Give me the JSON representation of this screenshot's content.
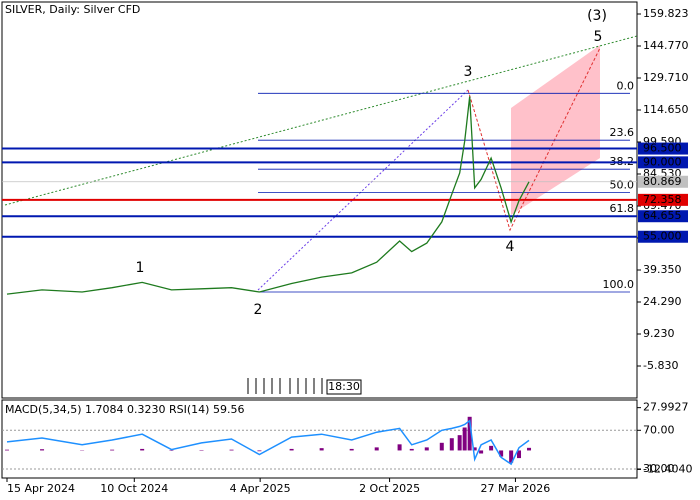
{
  "chart_data": {
    "type": "line",
    "title": "SILVER, Daily:  Silver CFD",
    "color": "#1e7a1e",
    "x": [
      "2024-04-15",
      "2024-06-03",
      "2024-07-29",
      "2024-09-09",
      "2024-10-21",
      "2024-12-01",
      "2025-01-12",
      "2025-02-23",
      "2025-04-03",
      "2025-05-18",
      "2025-06-29",
      "2025-08-10",
      "2025-09-14",
      "2025-10-16",
      "2025-11-02",
      "2025-11-23",
      "2025-12-14",
      "2025-12-28",
      "2026-01-08",
      "2026-01-15",
      "2026-01-22",
      "2026-01-29",
      "2026-02-07",
      "2026-02-21",
      "2026-03-07",
      "2026-03-21",
      "2026-04-01",
      "2026-04-15"
    ],
    "values": [
      28,
      30,
      29,
      31,
      33.5,
      30,
      30.5,
      31,
      29,
      33,
      36,
      38,
      43,
      53,
      48,
      52,
      62,
      75,
      85,
      100,
      121,
      78,
      82,
      92,
      78,
      62,
      72,
      80.869
    ],
    "xlim": [
      "2024-04-08",
      "2026-09-13"
    ],
    "xticks": [
      {
        "value": "2024-04-15",
        "label": "15 Apr 2024"
      },
      {
        "value": "2024-10-10",
        "label": "10 Oct 2024"
      },
      {
        "value": "2025-04-04",
        "label": "4 Apr 2025"
      },
      {
        "value": "2025-10-02",
        "label": "2 Oct 2025"
      },
      {
        "value": "2026-03-27",
        "label": "27 Mar 2026"
      }
    ],
    "ylim": [
      -20.89,
      165.47
    ],
    "yticks": [
      159.823,
      {
        "value": 144.77,
        "label": "144.770"
      },
      {
        "value": 129.71,
        "label": "129.710"
      },
      {
        "value": 114.65,
        "label": "114.650"
      },
      {
        "value": 99.59,
        "label": "99.590"
      },
      {
        "value": 84.53,
        "label": "84.530"
      },
      {
        "value": 69.47,
        "label": "69.470"
      },
      {
        "value": 54.41,
        "label": "54.410"
      },
      {
        "value": 39.35,
        "label": "39.350"
      },
      {
        "value": 24.29,
        "label": "24.290"
      },
      {
        "value": 9.23,
        "label": "9.230"
      },
      {
        "value": -5.83,
        "label": "-5.830"
      }
    ],
    "levels": [
      {
        "value": 96.5,
        "label": "96.500",
        "color": "#0018b0"
      },
      {
        "value": 90,
        "label": "90.000",
        "color": "#0018b0"
      },
      {
        "value": 80.869,
        "label": "80.869",
        "color": "#c0c0c0"
      },
      {
        "value": 72.358,
        "label": "72.358",
        "color": "#e00000"
      },
      {
        "value": 64.655,
        "label": "64.655",
        "color": "#0018b0"
      },
      {
        "value": 55,
        "label": "55.000",
        "color": "#0018b0"
      }
    ],
    "fibonacci": [
      {
        "label": "0.0",
        "value": 122.5
      },
      {
        "label": "23.6",
        "value": 100.43
      },
      {
        "label": "38.2",
        "value": 86.78
      },
      {
        "label": "50.0",
        "value": 75.75
      },
      {
        "label": "61.8",
        "value": 64.7
      },
      {
        "label": "100.0",
        "value": 29
      }
    ],
    "waves": [
      "1",
      "2",
      "3",
      "4",
      "5",
      "(3)"
    ],
    "timer": "18:30",
    "indicator": {
      "title": "MACD(5,34,5) 1.7084 0.3230 RSI(14) 59.56",
      "macd": [
        0.5,
        0.8,
        0.2,
        0.5,
        1,
        -0.3,
        0.3,
        0.5,
        -0.5,
        1,
        1.5,
        1,
        2,
        4,
        1,
        2,
        5,
        8,
        10,
        15,
        22,
        2,
        -2,
        3,
        -4,
        -8,
        -5,
        1.7084
      ],
      "macd_color": "#800080",
      "rsi": [
        58,
        62,
        55,
        60,
        66,
        50,
        57,
        61,
        45,
        63,
        66,
        60,
        68,
        72,
        55,
        60,
        70,
        72,
        74,
        76,
        80,
        40,
        55,
        60,
        42,
        35,
        52,
        59.56
      ],
      "rsi_color": "#1e90ff",
      "macd_lim": [
        -18.02,
        32.99
      ],
      "rsi_lim": [
        20.67,
        101.33
      ],
      "macd_ticks": [
        27.9927,
        {
          "value": -12.404,
          "label": "-12.4040"
        }
      ],
      "rsi_ticks": [
        {
          "value": 70,
          "label": "70.00"
        },
        {
          "value": 30,
          "label": "30.00"
        }
      ]
    }
  }
}
